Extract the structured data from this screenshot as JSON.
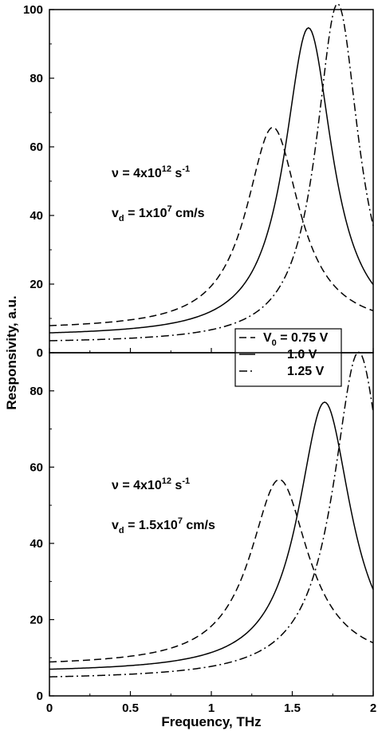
{
  "chart_data": [
    {
      "type": "line",
      "panel": "top",
      "xlabel": "",
      "ylabel": "Responsivity, a.u.",
      "xlim": [
        0,
        2
      ],
      "ylim": [
        0,
        100
      ],
      "yticks": [
        0,
        20,
        40,
        60,
        80,
        100
      ],
      "annotations": [
        {
          "base": "ν = 4x10",
          "sup": "12",
          "rest": " s",
          "sup2": "-1"
        },
        {
          "base": "v",
          "sub": "d",
          "mid": " = 1x10",
          "sup": "7",
          "rest": " cm/s"
        }
      ],
      "legend": {
        "placement": "bottom-right",
        "entries": [
          {
            "label_base": "V",
            "label_sub": "0",
            "label_rest": " = 0.75 V",
            "dash": "dashed"
          },
          {
            "label_base": "",
            "label_sub": "",
            "label_rest": "1.0 V",
            "dash": "solid"
          },
          {
            "label_base": "",
            "label_sub": "",
            "label_rest": "1.25 V",
            "dash": "dashdot"
          }
        ]
      },
      "series": [
        {
          "name": "V0 = 0.75 V",
          "dash": "dashed",
          "peak_x": 1.38,
          "peak_y": 59,
          "gamma": 0.4,
          "x": [
            0,
            0.5,
            1.0,
            1.25,
            1.38,
            1.5,
            2.0
          ],
          "y": [
            7.9,
            12,
            27.5,
            48,
            59,
            53,
            10.5
          ]
        },
        {
          "name": "1.0 V",
          "dash": "solid",
          "peak_x": 1.6,
          "peak_y": 90,
          "gamma": 0.36,
          "x": [
            0,
            0.5,
            1.0,
            1.4,
            1.6,
            1.8,
            2.0
          ],
          "y": [
            5.8,
            8.5,
            17.5,
            56,
            90,
            64,
            27
          ]
        },
        {
          "name": "1.25 V",
          "dash": "dashdot",
          "peak_x": 1.78,
          "peak_y": 99,
          "gamma": 0.32,
          "x": [
            0,
            0.5,
            1.0,
            1.5,
            1.78,
            1.9,
            2.0
          ],
          "y": [
            3.5,
            5,
            10.5,
            44,
            99,
            87,
            57
          ]
        }
      ]
    },
    {
      "type": "line",
      "panel": "bottom",
      "xlabel": "Frequency, THz",
      "ylabel": "Responsivity, a.u.",
      "xlim": [
        0,
        2
      ],
      "ylim": [
        0,
        90
      ],
      "xticks": [
        0,
        0.5,
        1,
        1.5,
        2
      ],
      "xtick_labels": [
        "0",
        "0.5",
        "1",
        "1.5",
        "2"
      ],
      "yticks": [
        0,
        20,
        40,
        60,
        80
      ],
      "annotations": [
        {
          "base": "ν = 4x10",
          "sup": "12",
          "rest": " s",
          "sup2": "-1"
        },
        {
          "base": "v",
          "sub": "d",
          "mid": " = 1.5x10",
          "sup": "7",
          "rest": " cm/s"
        }
      ],
      "series": [
        {
          "name": "V0 = 0.75 V",
          "dash": "dashed",
          "peak_x": 1.42,
          "peak_y": 49,
          "gamma": 0.44,
          "x": [
            0,
            0.5,
            1.0,
            1.42,
            1.6,
            2.0
          ],
          "y": [
            8.9,
            12.5,
            25,
            49,
            40,
            11
          ]
        },
        {
          "name": "1.0 V",
          "dash": "solid",
          "peak_x": 1.7,
          "peak_y": 71,
          "gamma": 0.4,
          "x": [
            0,
            0.5,
            1.0,
            1.5,
            1.7,
            2.0
          ],
          "y": [
            7,
            9.5,
            18.5,
            52,
            71,
            31.5
          ]
        },
        {
          "name": "1.25 V",
          "dash": "dashdot",
          "peak_x": 1.91,
          "peak_y": 86,
          "gamma": 0.38,
          "x": [
            0,
            0.5,
            1.0,
            1.5,
            1.91,
            2.0
          ],
          "y": [
            5,
            6.5,
            11.5,
            31,
            86,
            77
          ]
        }
      ]
    }
  ]
}
